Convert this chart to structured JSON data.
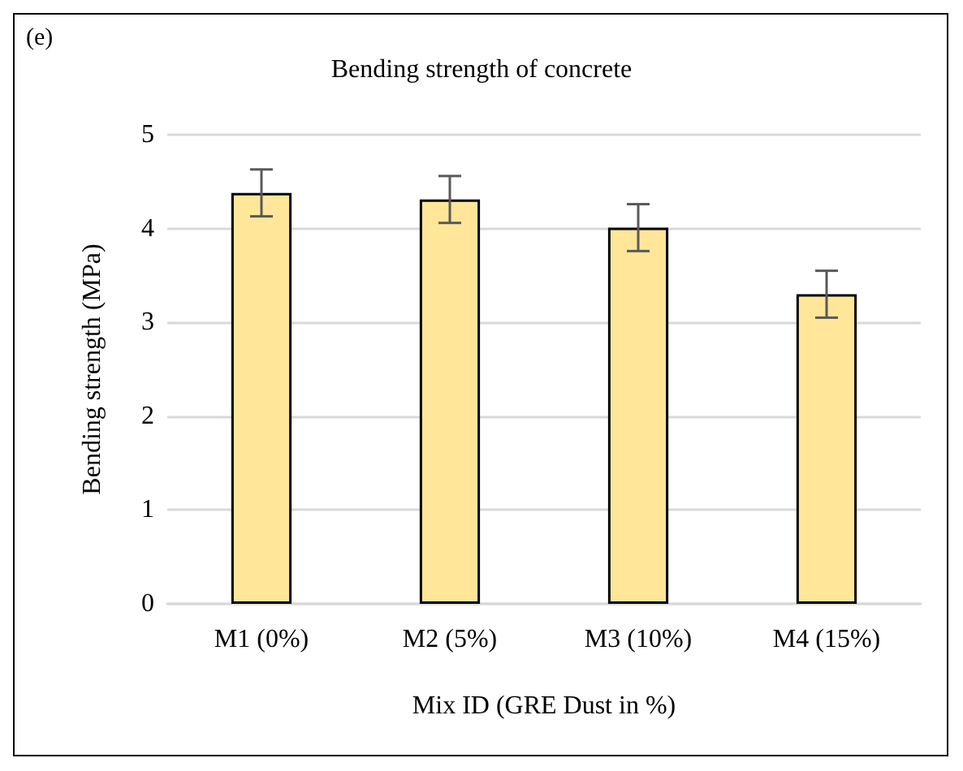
{
  "chart_data": {
    "type": "bar",
    "title": "Bending strength of concrete",
    "xlabel": "Mix ID (GRE Dust in %)",
    "ylabel": "Bending strength (MPa)",
    "categories": [
      "M1 (0%)",
      "M2 (5%)",
      "M3 (10%)",
      "M4 (15%)"
    ],
    "values": [
      4.38,
      4.31,
      4.01,
      3.3
    ],
    "errors": [
      0.25,
      0.25,
      0.25,
      0.25
    ],
    "color": "#ffe699",
    "ylim": [
      0,
      5
    ],
    "yticks": [
      0,
      1,
      2,
      3,
      4,
      5
    ],
    "grid": "y",
    "annotations": [
      "(e)"
    ]
  }
}
